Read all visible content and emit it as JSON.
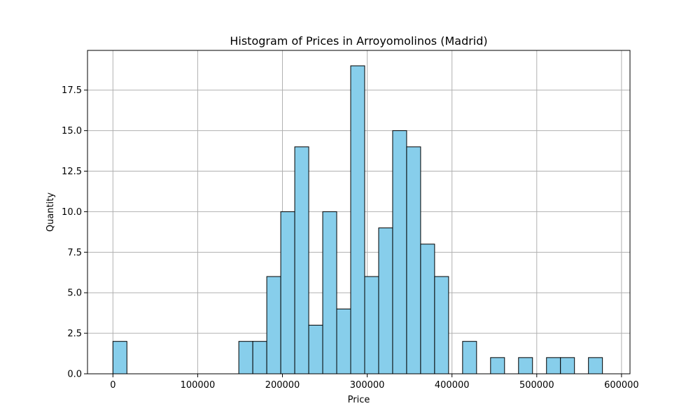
{
  "chart_data": {
    "type": "bar",
    "title": "Histogram of Prices in Arroyomolinos (Madrid)",
    "xlabel": "Price",
    "ylabel": "Quantity",
    "xlim": [
      -30000,
      610000
    ],
    "ylim": [
      0,
      19.95
    ],
    "xticks": [
      0,
      100000,
      200000,
      300000,
      400000,
      500000,
      600000
    ],
    "yticks": [
      "0.0",
      "2.5",
      "5.0",
      "7.5",
      "10.0",
      "12.5",
      "15.0",
      "17.5"
    ],
    "grid": true,
    "colors": {
      "bar_fill": "#87ceeb",
      "bar_edge": "#000000",
      "grid": "#b0b0b0"
    },
    "bins": [
      {
        "x0": 0,
        "x1": 16500,
        "count": 2
      },
      {
        "x0": 148500,
        "x1": 165000,
        "count": 2
      },
      {
        "x0": 165000,
        "x1": 181500,
        "count": 2
      },
      {
        "x0": 181500,
        "x1": 198000,
        "count": 6
      },
      {
        "x0": 198000,
        "x1": 214500,
        "count": 10
      },
      {
        "x0": 214500,
        "x1": 231000,
        "count": 14
      },
      {
        "x0": 231000,
        "x1": 247500,
        "count": 3
      },
      {
        "x0": 247500,
        "x1": 264000,
        "count": 10
      },
      {
        "x0": 264000,
        "x1": 280500,
        "count": 4
      },
      {
        "x0": 280500,
        "x1": 297000,
        "count": 19
      },
      {
        "x0": 297000,
        "x1": 313500,
        "count": 6
      },
      {
        "x0": 313500,
        "x1": 330000,
        "count": 9
      },
      {
        "x0": 330000,
        "x1": 346500,
        "count": 15
      },
      {
        "x0": 346500,
        "x1": 363000,
        "count": 14
      },
      {
        "x0": 363000,
        "x1": 379500,
        "count": 8
      },
      {
        "x0": 379500,
        "x1": 396000,
        "count": 6
      },
      {
        "x0": 412500,
        "x1": 429000,
        "count": 2
      },
      {
        "x0": 445500,
        "x1": 462000,
        "count": 1
      },
      {
        "x0": 478500,
        "x1": 495000,
        "count": 1
      },
      {
        "x0": 511500,
        "x1": 528000,
        "count": 1
      },
      {
        "x0": 528000,
        "x1": 544500,
        "count": 1
      },
      {
        "x0": 561000,
        "x1": 577500,
        "count": 1
      }
    ]
  }
}
